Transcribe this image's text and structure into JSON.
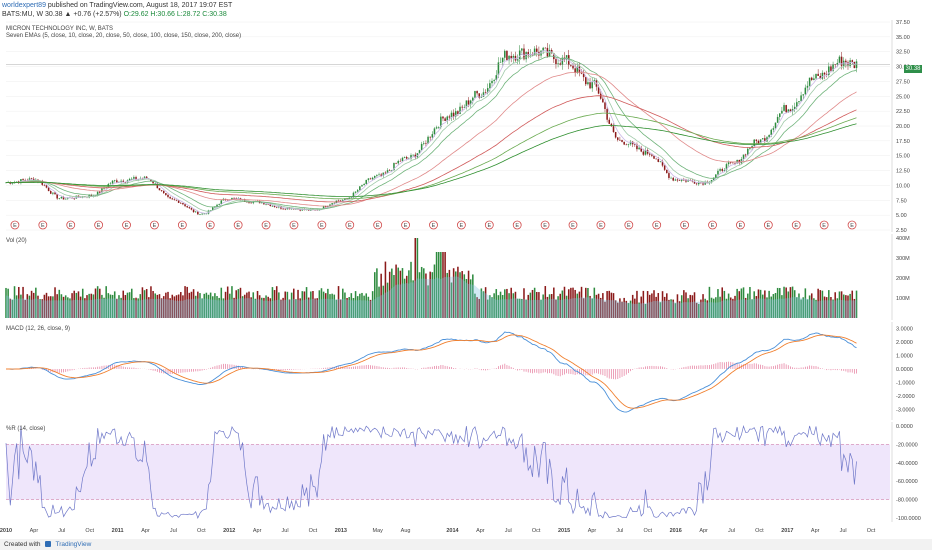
{
  "header": {
    "author": "worldexpert89",
    "published_text": " published on TradingView.com, August 18, 2017 19:07 EST",
    "ticker_line_prefix": "BATS:MU, W  30.38 ▲ +0.76 (+2.57%) ",
    "ohlc": "O:29.62 H:30.66 L:28.72 C:30.38"
  },
  "main_panel": {
    "symbol_label": "MICRON TECHNOLOGY INC, W, BATS",
    "indicator_label": "Seven EMAs (5, close, 10, close, 20, close, 50, close, 100, close, 150, close, 200, close)",
    "price_tag": "30.38",
    "earnings_marker": "E"
  },
  "volume_panel": {
    "label": "Vol (20)"
  },
  "macd_panel": {
    "label": "MACD (12, 26, close, 9)"
  },
  "wr_panel": {
    "label": "%R (14, close)"
  },
  "footer": {
    "created_with": "Created with",
    "brand": "TradingView"
  },
  "colors": {
    "up": "#2e8b3f",
    "down": "#8b1a1a",
    "grid": "#eeeeee",
    "macd": "#4a90d9",
    "signal": "#f08030",
    "wr": "#6f78c9",
    "wr_band": "#efe6fb"
  },
  "chart_data": [
    {
      "type": "candlestick",
      "title": "MICRON TECHNOLOGY INC, W, BATS",
      "x_ticks": [
        "2010",
        "Apr",
        "Jul",
        "Oct",
        "2011",
        "Apr",
        "Jul",
        "Oct",
        "2012",
        "Apr",
        "Jul",
        "Oct",
        "2013",
        "May",
        "Aug",
        "2014",
        "Apr",
        "Jul",
        "Oct",
        "2015",
        "Apr",
        "Jul",
        "Oct",
        "2016",
        "Apr",
        "Jul",
        "Oct",
        "2017",
        "Apr",
        "Jul",
        "Oct"
      ],
      "y_ticks": [
        2.5,
        5,
        7.5,
        10,
        12.5,
        15,
        17.5,
        20,
        22.5,
        25,
        27.5,
        30,
        32.5,
        35,
        37.5
      ],
      "ylim": [
        2.5,
        37.5
      ],
      "approx_close": [
        [
          "2010-01",
          10.5
        ],
        [
          "2010-04",
          11.0
        ],
        [
          "2010-07",
          7.8
        ],
        [
          "2010-10",
          8.2
        ],
        [
          "2011-01",
          10.8
        ],
        [
          "2011-04",
          11.2
        ],
        [
          "2011-07",
          7.5
        ],
        [
          "2011-10",
          5.2
        ],
        [
          "2012-01",
          7.8
        ],
        [
          "2012-04",
          7.2
        ],
        [
          "2012-07",
          6.2
        ],
        [
          "2012-10",
          5.8
        ],
        [
          "2013-01",
          7.5
        ],
        [
          "2013-05",
          11.5
        ],
        [
          "2013-08",
          14.5
        ],
        [
          "2014-01",
          22.0
        ],
        [
          "2014-04",
          25.5
        ],
        [
          "2014-07",
          32.0
        ],
        [
          "2014-10",
          32.5
        ],
        [
          "2015-01",
          31.0
        ],
        [
          "2015-04",
          27.0
        ],
        [
          "2015-07",
          17.5
        ],
        [
          "2015-10",
          15.5
        ],
        [
          "2016-01",
          11.0
        ],
        [
          "2016-04",
          10.5
        ],
        [
          "2016-07",
          13.5
        ],
        [
          "2016-10",
          17.5
        ],
        [
          "2017-01",
          23.0
        ],
        [
          "2017-04",
          28.0
        ],
        [
          "2017-07",
          31.0
        ],
        [
          "2017-08",
          30.38
        ]
      ],
      "overlays": "Seven EMAs (5, 10, 20, 50, 100, 150, 200)"
    },
    {
      "type": "bar",
      "title": "Vol (20)",
      "y_ticks": [
        "0",
        "100M",
        "200M",
        "300M",
        "400M"
      ],
      "ylim": [
        0,
        400
      ]
    },
    {
      "type": "line",
      "title": "MACD (12, 26, close, 9)",
      "y_ticks": [
        "3.0000",
        "2.0000",
        "1.0000",
        "0.0000",
        "-1.0000",
        "-2.0000",
        "-3.0000"
      ],
      "ylim": [
        -3.5,
        3.2
      ]
    },
    {
      "type": "line",
      "title": "%R (14, close)",
      "y_ticks": [
        "0.0000",
        "-20.0000",
        "-40.0000",
        "-60.0000",
        "-80.0000",
        "-100.0000"
      ],
      "ylim": [
        -100,
        0
      ]
    }
  ]
}
